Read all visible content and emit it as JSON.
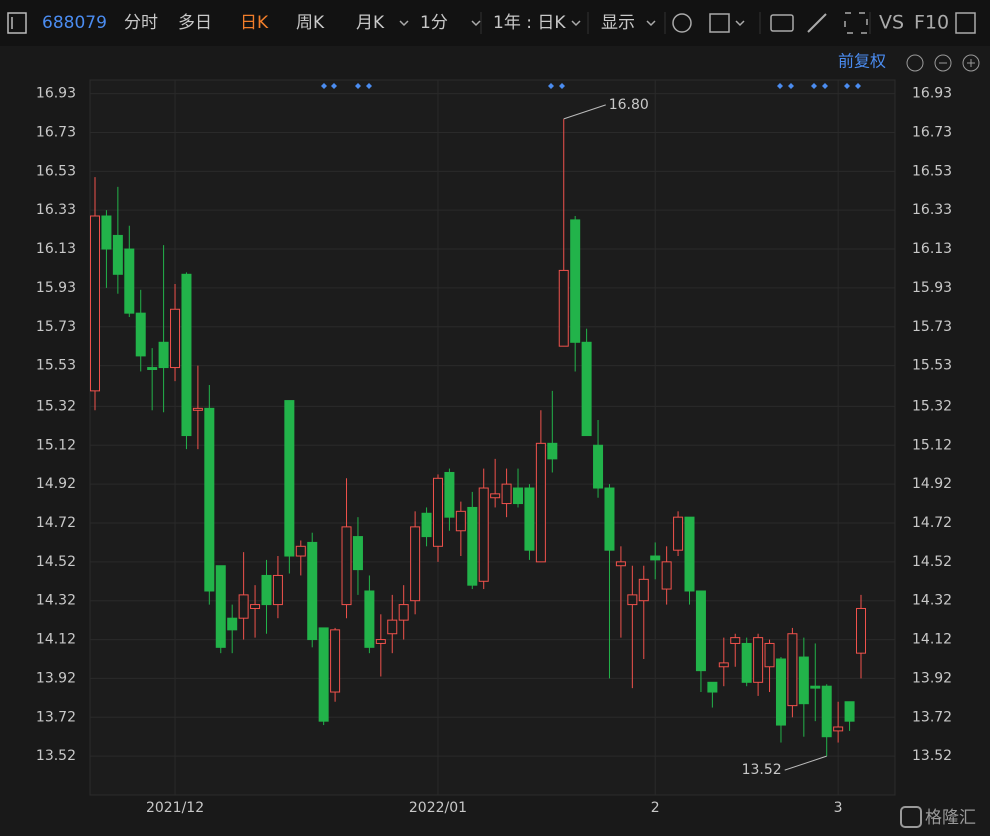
{
  "toolbar": {
    "code": "688079",
    "tabs": [
      "分时",
      "多日",
      "日K",
      "周K",
      "月K",
      "1分"
    ],
    "active": "日K",
    "range": "1年 : 日K",
    "display": "显示",
    "vs": "VS",
    "f10": "F10",
    "adjust": "前复权",
    "watermark": "格隆汇"
  },
  "chart_data": {
    "type": "candlestick",
    "categories": [
      null,
      null,
      null,
      null,
      null,
      null,
      null,
      "2021/12",
      null,
      null,
      null,
      null,
      null,
      null,
      null,
      null,
      null,
      null,
      null,
      null,
      null,
      null,
      null,
      null,
      null,
      null,
      null,
      null,
      null,
      null,
      "2022/01",
      null,
      null,
      null,
      null,
      null,
      null,
      null,
      null,
      null,
      null,
      null,
      null,
      null,
      null,
      null,
      null,
      null,
      null,
      "2",
      null,
      null,
      null,
      null,
      null,
      null,
      null,
      null,
      null,
      null,
      null,
      null,
      null,
      null,
      null,
      "3",
      null,
      null
    ],
    "open": [
      15.4,
      16.3,
      16.2,
      16.13,
      15.8,
      15.52,
      15.65,
      15.52,
      16.0,
      15.3,
      15.31,
      14.5,
      14.23,
      14.23,
      14.28,
      14.45,
      14.3,
      15.35,
      14.55,
      14.62,
      14.18,
      13.85,
      14.3,
      14.65,
      14.37,
      14.1,
      14.15,
      14.22,
      14.32,
      14.77,
      14.6,
      14.98,
      14.68,
      14.8,
      14.42,
      14.85,
      14.82,
      14.9,
      14.9,
      14.52,
      15.13,
      15.63,
      16.28,
      15.65,
      15.12,
      14.9,
      14.5,
      14.3,
      14.32,
      14.55,
      14.38,
      14.58,
      14.75,
      14.37,
      13.9,
      13.98,
      14.1,
      14.1,
      13.9,
      13.98,
      14.02,
      13.78,
      14.03,
      13.88,
      13.88,
      13.65,
      13.8,
      14.05
    ],
    "high": [
      16.5,
      16.33,
      16.45,
      16.25,
      15.92,
      15.62,
      16.15,
      15.95,
      16.01,
      15.53,
      15.43,
      14.5,
      14.3,
      14.57,
      14.4,
      14.53,
      14.55,
      15.35,
      14.63,
      14.67,
      14.18,
      14.18,
      14.95,
      14.75,
      14.45,
      14.25,
      14.35,
      14.4,
      14.78,
      14.8,
      14.97,
      15.0,
      14.83,
      14.88,
      15.0,
      15.05,
      15.0,
      15.0,
      14.92,
      15.3,
      15.4,
      16.8,
      16.3,
      15.72,
      15.25,
      14.92,
      14.6,
      14.5,
      14.5,
      14.62,
      14.6,
      14.78,
      14.75,
      14.37,
      13.9,
      14.13,
      14.15,
      14.13,
      14.15,
      14.12,
      14.03,
      14.18,
      14.13,
      14.1,
      13.89,
      13.8,
      13.8,
      14.35
    ],
    "low": [
      15.3,
      15.93,
      15.9,
      15.78,
      15.5,
      15.3,
      15.29,
      15.45,
      15.1,
      15.1,
      14.3,
      14.05,
      14.05,
      14.12,
      14.13,
      14.15,
      14.23,
      14.46,
      14.45,
      14.08,
      13.68,
      13.8,
      14.23,
      14.35,
      14.05,
      13.93,
      14.05,
      14.12,
      14.25,
      14.6,
      14.52,
      14.68,
      14.55,
      14.38,
      14.38,
      14.8,
      14.75,
      14.8,
      14.53,
      14.52,
      14.98,
      15.63,
      15.5,
      15.17,
      14.85,
      13.92,
      14.13,
      13.87,
      14.02,
      14.43,
      14.3,
      14.55,
      14.3,
      13.85,
      13.77,
      13.88,
      13.98,
      13.88,
      13.83,
      13.85,
      13.59,
      13.72,
      13.62,
      13.7,
      13.52,
      13.59,
      13.65,
      13.92
    ],
    "close": [
      16.3,
      16.13,
      16.0,
      15.8,
      15.58,
      15.51,
      15.52,
      15.82,
      15.17,
      15.31,
      14.37,
      14.08,
      14.17,
      14.35,
      14.3,
      14.3,
      14.45,
      14.55,
      14.6,
      14.12,
      13.7,
      14.17,
      14.7,
      14.48,
      14.08,
      14.12,
      14.22,
      14.3,
      14.7,
      14.65,
      14.95,
      14.75,
      14.78,
      14.4,
      14.9,
      14.87,
      14.92,
      14.82,
      14.58,
      15.13,
      15.05,
      16.02,
      15.65,
      15.17,
      14.9,
      14.58,
      14.52,
      14.35,
      14.43,
      14.53,
      14.52,
      14.75,
      14.37,
      13.96,
      13.85,
      14.0,
      14.13,
      13.9,
      14.13,
      14.1,
      13.68,
      14.15,
      13.79,
      13.87,
      13.62,
      13.67,
      13.7,
      14.28
    ],
    "up_color": "#f0524c",
    "down_color": "#22b34a",
    "ylim": [
      13.32,
      17.0
    ],
    "yticks": [
      16.93,
      16.73,
      16.53,
      16.33,
      16.13,
      15.93,
      15.73,
      15.53,
      15.32,
      15.12,
      14.92,
      14.72,
      14.52,
      14.32,
      14.12,
      13.92,
      13.72,
      13.52
    ],
    "annotations": [
      {
        "text": "16.80",
        "index": 41,
        "at": "high"
      },
      {
        "text": "13.52",
        "index": 64,
        "at": "low"
      }
    ],
    "grid": true
  }
}
